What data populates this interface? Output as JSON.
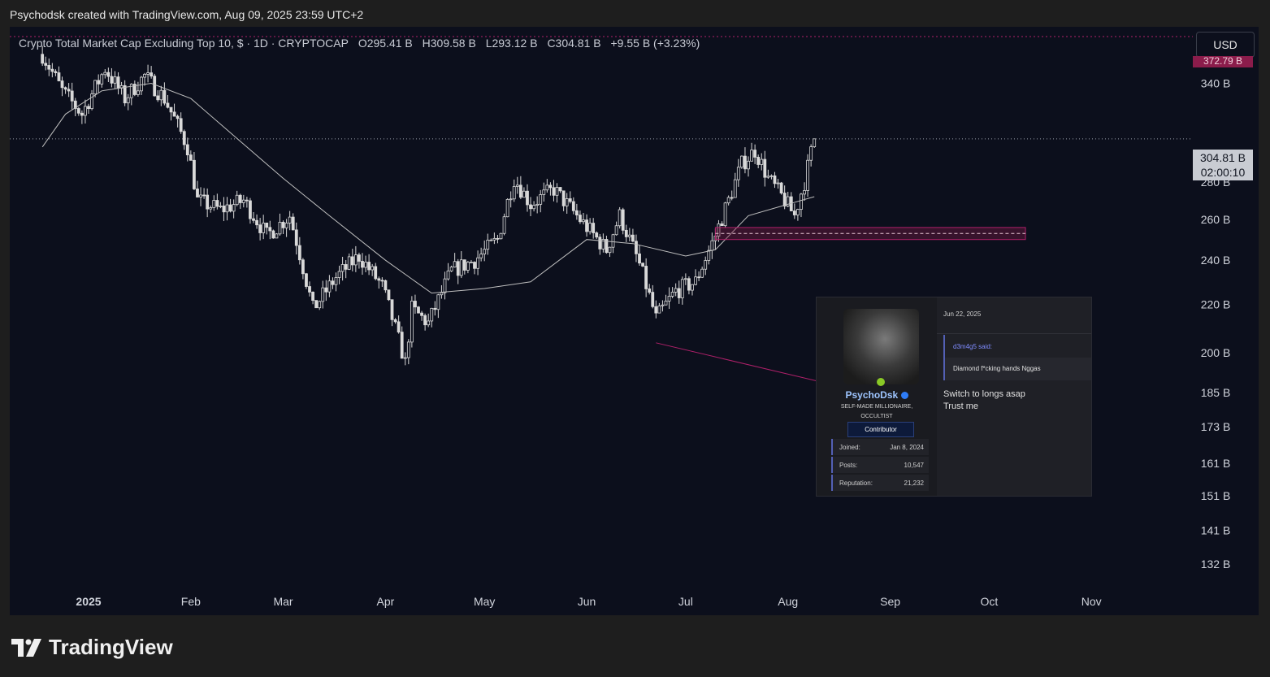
{
  "header": {
    "text": "Psychodsk created with TradingView.com, Aug 09, 2025 23:59 UTC+2"
  },
  "legend": {
    "title": "Crypto Total Market Cap Excluding Top 10, $ · 1D · CRYPTOCAP",
    "open": "O295.41 B",
    "high": "H309.58 B",
    "low": "L293.12 B",
    "close": "C304.81 B",
    "change": "+9.55 B (+3.23%)"
  },
  "currency_button": "USD",
  "last_price": {
    "value": "304.81 B",
    "countdown": "02:00:10"
  },
  "top_price_tag": "372.79 B",
  "brand": "TradingView",
  "colors": {
    "background": "#0c0f1c",
    "candle": "#d9d9d9",
    "ma_line": "#bfbfbf",
    "annotation": "#b0206a",
    "zone": "#8b1c4b"
  },
  "card": {
    "date": "Jun 22, 2025",
    "username": "PsychoDsk",
    "user_title": "SELF-MADE MILLIONAIRE, OCCULTIST",
    "badge": "Contributor",
    "joined_label": "Joined:",
    "joined_value": "Jan 8, 2024",
    "posts_label": "Posts:",
    "posts_value": "10,547",
    "rep_label": "Reputation:",
    "rep_value": "21,232",
    "quote_author": "d3m4g5 said:",
    "quote_text": "Diamond f*cking hands Nggas",
    "reply_line1": "Switch to longs asap",
    "reply_line2": "Trust me"
  },
  "chart_data": {
    "type": "line",
    "scale": "log",
    "ylim": [
      124,
      380
    ],
    "y_ticks": [
      {
        "label": "340 B",
        "value": 340
      },
      {
        "label": "280 B",
        "value": 280
      },
      {
        "label": "260 B",
        "value": 260
      },
      {
        "label": "240 B",
        "value": 240
      },
      {
        "label": "220 B",
        "value": 220
      },
      {
        "label": "200 B",
        "value": 200
      },
      {
        "label": "185 B",
        "value": 185
      },
      {
        "label": "173 B",
        "value": 173
      },
      {
        "label": "161 B",
        "value": 161
      },
      {
        "label": "151 B",
        "value": 151
      },
      {
        "label": "141 B",
        "value": 141
      },
      {
        "label": "132 B",
        "value": 132
      }
    ],
    "x_ticks": [
      {
        "label": "2025",
        "date": "2025-01-01",
        "bold": true
      },
      {
        "label": "Feb",
        "date": "2025-02-01"
      },
      {
        "label": "Mar",
        "date": "2025-03-01"
      },
      {
        "label": "Apr",
        "date": "2025-04-01"
      },
      {
        "label": "May",
        "date": "2025-05-01"
      },
      {
        "label": "Jun",
        "date": "2025-06-01"
      },
      {
        "label": "Jul",
        "date": "2025-07-01"
      },
      {
        "label": "Aug",
        "date": "2025-08-01"
      },
      {
        "label": "Sep",
        "date": "2025-09-01"
      },
      {
        "label": "Oct",
        "date": "2025-10-01"
      },
      {
        "label": "Nov",
        "date": "2025-11-01"
      }
    ],
    "series": [
      {
        "name": "close",
        "points": [
          [
            "2024-12-18",
            360
          ],
          [
            "2024-12-24",
            335
          ],
          [
            "2024-12-30",
            320
          ],
          [
            "2025-01-06",
            350
          ],
          [
            "2025-01-12",
            330
          ],
          [
            "2025-01-18",
            345
          ],
          [
            "2025-01-24",
            330
          ],
          [
            "2025-01-31",
            300
          ],
          [
            "2025-02-03",
            270
          ],
          [
            "2025-02-10",
            265
          ],
          [
            "2025-02-17",
            270
          ],
          [
            "2025-02-24",
            252
          ],
          [
            "2025-03-03",
            262
          ],
          [
            "2025-03-10",
            218
          ],
          [
            "2025-03-17",
            232
          ],
          [
            "2025-03-24",
            242
          ],
          [
            "2025-03-31",
            228
          ],
          [
            "2025-04-07",
            196
          ],
          [
            "2025-04-09",
            218
          ],
          [
            "2025-04-14",
            212
          ],
          [
            "2025-04-21",
            235
          ],
          [
            "2025-04-28",
            240
          ],
          [
            "2025-05-05",
            250
          ],
          [
            "2025-05-10",
            282
          ],
          [
            "2025-05-15",
            268
          ],
          [
            "2025-05-22",
            276
          ],
          [
            "2025-05-31",
            258
          ],
          [
            "2025-06-07",
            245
          ],
          [
            "2025-06-11",
            262
          ],
          [
            "2025-06-17",
            238
          ],
          [
            "2025-06-22",
            214
          ],
          [
            "2025-06-28",
            226
          ],
          [
            "2025-07-04",
            230
          ],
          [
            "2025-07-10",
            252
          ],
          [
            "2025-07-14",
            270
          ],
          [
            "2025-07-18",
            290
          ],
          [
            "2025-07-22",
            298
          ],
          [
            "2025-07-26",
            282
          ],
          [
            "2025-07-31",
            270
          ],
          [
            "2025-08-03",
            262
          ],
          [
            "2025-08-06",
            280
          ],
          [
            "2025-08-09",
            304.81
          ]
        ]
      },
      {
        "name": "moving-average",
        "points": [
          [
            "2024-12-18",
            300
          ],
          [
            "2024-12-25",
            320
          ],
          [
            "2025-01-05",
            335
          ],
          [
            "2025-01-20",
            340
          ],
          [
            "2025-02-01",
            330
          ],
          [
            "2025-02-15",
            305
          ],
          [
            "2025-03-01",
            282
          ],
          [
            "2025-03-15",
            262
          ],
          [
            "2025-04-01",
            240
          ],
          [
            "2025-04-15",
            225
          ],
          [
            "2025-05-01",
            227
          ],
          [
            "2025-05-15",
            230
          ],
          [
            "2025-06-01",
            250
          ],
          [
            "2025-06-15",
            248
          ],
          [
            "2025-07-01",
            242
          ],
          [
            "2025-07-10",
            245
          ],
          [
            "2025-07-20",
            262
          ],
          [
            "2025-08-01",
            268
          ],
          [
            "2025-08-09",
            272
          ]
        ]
      }
    ],
    "dotted_price_line": 304.81,
    "top_dashed_line": 372.79,
    "zone": {
      "from": "2025-07-10",
      "to": "2025-10-12",
      "low": 250,
      "high": 256
    },
    "arrow": {
      "from_date": "2025-06-22",
      "from_value": 204,
      "to_date": "2025-08-21",
      "to_value": 186
    }
  }
}
